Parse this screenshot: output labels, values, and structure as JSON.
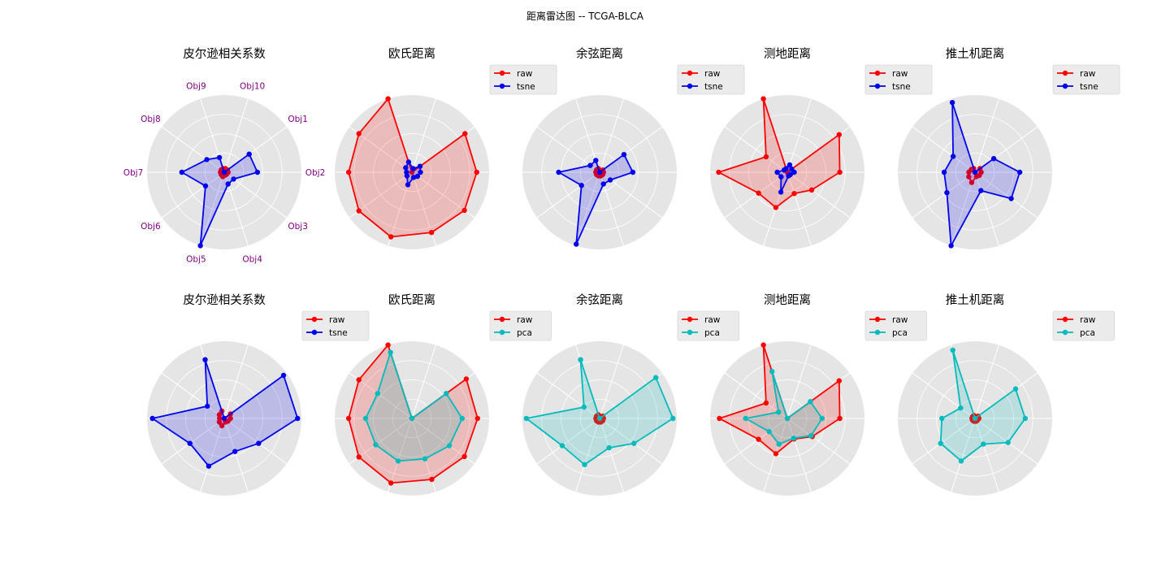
{
  "figure": {
    "title": "距离雷达图 -- TCGA-BLCA"
  },
  "colors": {
    "raw": "#ff0000",
    "tsne": "#0000ee",
    "pca": "#00bbbb",
    "background": "#e5e5e5",
    "grid": "#ffffff",
    "tick_label": "#800080"
  },
  "chart_data": [
    {
      "type": "radar",
      "row": 1,
      "col": 1,
      "title": "皮尔逊相关系数",
      "legend": "none",
      "categories": [
        "Obj1",
        "Obj2",
        "Obj3",
        "Obj4",
        "Obj5",
        "Obj6",
        "Obj7",
        "Obj8",
        "Obj9",
        "Obj10"
      ],
      "series": [
        {
          "name": "raw",
          "values": [
            0.05,
            0.05,
            0.04,
            0.04,
            0.06,
            0.05,
            0.05,
            0.05,
            0.05,
            0.05
          ]
        },
        {
          "name": "tsne",
          "values": [
            0.4,
            0.43,
            0.15,
            0.16,
            1.0,
            0.3,
            0.55,
            0.28,
            0.2,
            0.0
          ]
        }
      ]
    },
    {
      "type": "radar",
      "row": 1,
      "col": 2,
      "title": "欧氏距离",
      "legend": "upper-right",
      "series": [
        {
          "name": "raw",
          "values": [
            0.85,
            0.84,
            0.84,
            0.82,
            0.88,
            0.85,
            0.82,
            0.85,
            1.0,
            0.0
          ]
        },
        {
          "name": "tsne",
          "values": [
            0.13,
            0.11,
            0.09,
            0.07,
            0.17,
            0.08,
            0.07,
            0.1,
            0.14,
            0.05
          ]
        }
      ]
    },
    {
      "type": "radar",
      "row": 1,
      "col": 3,
      "title": "余弦距离",
      "legend": "upper-right",
      "series": [
        {
          "name": "raw",
          "values": [
            0.05,
            0.05,
            0.05,
            0.05,
            0.05,
            0.05,
            0.05,
            0.05,
            0.05,
            0.0
          ]
        },
        {
          "name": "tsne",
          "values": [
            0.39,
            0.43,
            0.17,
            0.16,
            0.98,
            0.29,
            0.53,
            0.15,
            0.16,
            0.0
          ]
        }
      ]
    },
    {
      "type": "radar",
      "row": 1,
      "col": 4,
      "title": "测地距离",
      "legend": "upper-right",
      "series": [
        {
          "name": "raw",
          "values": [
            0.83,
            0.68,
            0.39,
            0.29,
            0.48,
            0.46,
            0.89,
            0.34,
            1.0,
            0.0
          ]
        },
        {
          "name": "tsne",
          "values": [
            0.07,
            0.09,
            0.05,
            0.05,
            0.27,
            0.1,
            0.13,
            0.05,
            0.05,
            0.1
          ]
        }
      ]
    },
    {
      "type": "radar",
      "row": 1,
      "col": 5,
      "title": "推土机距离",
      "legend": "upper-right",
      "series": [
        {
          "name": "raw",
          "values": [
            0.08,
            0.08,
            0.07,
            0.06,
            0.14,
            0.1,
            0.08,
            0.06,
            0.05,
            0.0
          ]
        },
        {
          "name": "tsne",
          "values": [
            0.3,
            0.58,
            0.58,
            0.25,
            1.0,
            0.45,
            0.4,
            0.35,
            0.95,
            0.0
          ]
        }
      ]
    },
    {
      "type": "radar",
      "row": 2,
      "col": 1,
      "title": "皮尔逊相关系数",
      "legend": "upper-right",
      "series": [
        {
          "name": "raw",
          "values": [
            0.1,
            0.08,
            0.06,
            0.05,
            0.1,
            0.08,
            0.06,
            0.08,
            0.1,
            0.0
          ]
        },
        {
          "name": "tsne",
          "values": [
            0.95,
            0.95,
            0.55,
            0.45,
            0.65,
            0.55,
            0.93,
            0.27,
            0.8,
            0.0
          ]
        }
      ]
    },
    {
      "type": "radar",
      "row": 2,
      "col": 2,
      "title": "欧氏距离",
      "legend": "upper-right",
      "series": [
        {
          "name": "raw",
          "values": [
            0.87,
            0.85,
            0.84,
            0.83,
            0.88,
            0.85,
            0.82,
            0.85,
            1.0,
            0.0
          ]
        },
        {
          "name": "pca",
          "values": [
            0.55,
            0.65,
            0.6,
            0.55,
            0.58,
            0.58,
            0.6,
            0.55,
            0.9,
            0.0
          ]
        }
      ]
    },
    {
      "type": "radar",
      "row": 2,
      "col": 3,
      "title": "余弦距离",
      "legend": "upper-right",
      "series": [
        {
          "name": "raw",
          "values": [
            0.05,
            0.05,
            0.05,
            0.05,
            0.05,
            0.05,
            0.05,
            0.05,
            0.05,
            0.0
          ]
        },
        {
          "name": "pca",
          "values": [
            0.9,
            0.95,
            0.55,
            0.4,
            0.63,
            0.6,
            0.95,
            0.25,
            0.8,
            0.0
          ]
        }
      ]
    },
    {
      "type": "radar",
      "row": 2,
      "col": 4,
      "title": "测地距离",
      "legend": "upper-right",
      "series": [
        {
          "name": "raw",
          "values": [
            0.83,
            0.68,
            0.4,
            0.28,
            0.48,
            0.46,
            0.88,
            0.34,
            1.0,
            0.0
          ]
        },
        {
          "name": "pca",
          "values": [
            0.37,
            0.45,
            0.38,
            0.27,
            0.35,
            0.29,
            0.54,
            0.14,
            0.64,
            0.0
          ]
        }
      ]
    },
    {
      "type": "radar",
      "row": 2,
      "col": 5,
      "title": "推土机距离",
      "legend": "upper-right",
      "series": [
        {
          "name": "raw",
          "values": [
            0.05,
            0.05,
            0.04,
            0.04,
            0.04,
            0.04,
            0.04,
            0.04,
            0.04,
            0.0
          ]
        },
        {
          "name": "pca",
          "values": [
            0.65,
            0.65,
            0.53,
            0.35,
            0.58,
            0.55,
            0.43,
            0.23,
            0.93,
            0.0
          ]
        }
      ]
    }
  ]
}
